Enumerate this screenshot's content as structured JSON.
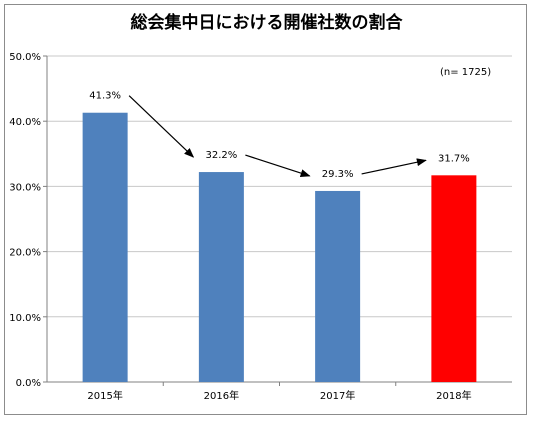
{
  "chart_data": {
    "type": "bar",
    "title": "総会集中日における開催社数の割合",
    "annotation": "(n= 1725)",
    "categories": [
      "2015年",
      "2016年",
      "2017年",
      "2018年"
    ],
    "values": [
      41.3,
      32.2,
      29.3,
      31.7
    ],
    "value_labels": [
      "41.3%",
      "32.2%",
      "29.3%",
      "31.7%"
    ],
    "bar_colors": [
      "#4f81bd",
      "#4f81bd",
      "#4f81bd",
      "#ff0000"
    ],
    "ylim": [
      0,
      50
    ],
    "y_ticks": [
      0,
      10,
      20,
      30,
      40,
      50
    ],
    "y_tick_labels": [
      "0.0%",
      "10.0%",
      "20.0%",
      "30.0%",
      "40.0%",
      "50.0%"
    ],
    "grid": true,
    "trend_arrows": true,
    "xlabel": "",
    "ylabel": ""
  }
}
